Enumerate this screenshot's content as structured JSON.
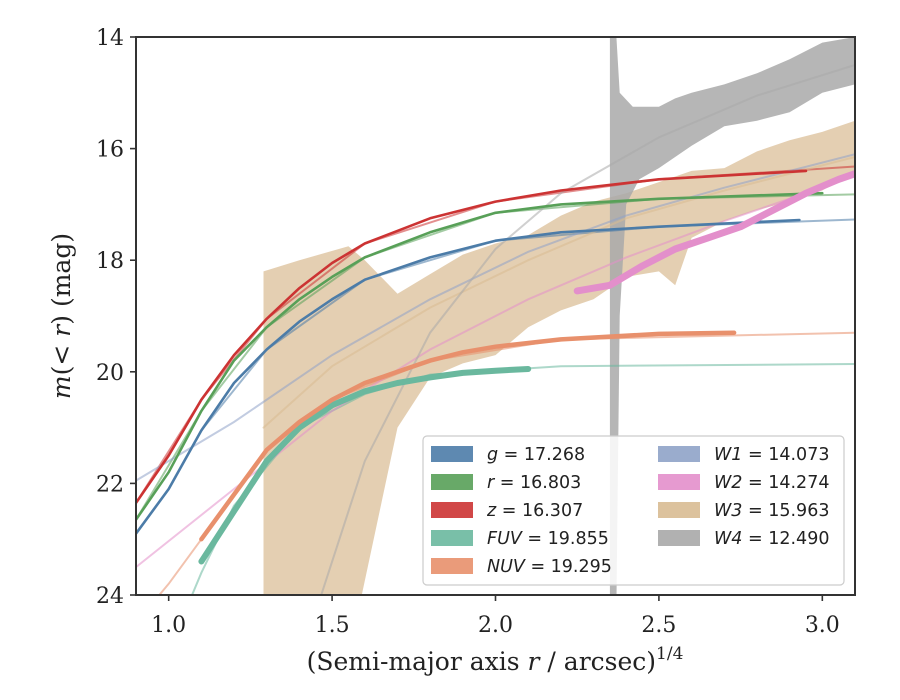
{
  "chart_data": {
    "type": "line",
    "xlabel": "(Semi-major axis r / arcsec)^{1/4}",
    "ylabel": "m(< r) (mag)",
    "xlim": [
      0.9,
      3.1
    ],
    "ylim": [
      24,
      14
    ],
    "y_inverted": true,
    "xticks": [
      "1.0",
      "1.5",
      "2.0",
      "2.5",
      "3.0"
    ],
    "xtick_values": [
      1.0,
      1.5,
      2.0,
      2.5,
      3.0
    ],
    "yticks": [
      "14",
      "16",
      "18",
      "20",
      "22",
      "24"
    ],
    "ytick_values": [
      14,
      16,
      18,
      20,
      22,
      24
    ],
    "grid": false,
    "legend_position": "lower-right",
    "series": [
      {
        "name": "g = 17.268",
        "band": "g",
        "value": "17.268",
        "color": "#4c7ca8",
        "data": [
          [
            0.9,
            22.9
          ],
          [
            1.0,
            22.1
          ],
          [
            1.1,
            21.05
          ],
          [
            1.2,
            20.2
          ],
          [
            1.3,
            19.6
          ],
          [
            1.4,
            19.1
          ],
          [
            1.5,
            18.7
          ],
          [
            1.6,
            18.35
          ],
          [
            1.8,
            17.95
          ],
          [
            2.0,
            17.65
          ],
          [
            2.2,
            17.5
          ],
          [
            2.5,
            17.4
          ],
          [
            2.93,
            17.28
          ]
        ],
        "model": [
          [
            0.9,
            22.9
          ],
          [
            1.0,
            22.1
          ],
          [
            1.1,
            21.05
          ],
          [
            1.3,
            19.6
          ],
          [
            1.6,
            18.35
          ],
          [
            2.0,
            17.65
          ],
          [
            2.5,
            17.4
          ],
          [
            3.1,
            17.27
          ]
        ]
      },
      {
        "name": "r = 16.803",
        "band": "r",
        "value": "16.803",
        "color": "#58a058",
        "data": [
          [
            0.9,
            22.65
          ],
          [
            1.0,
            21.8
          ],
          [
            1.1,
            20.7
          ],
          [
            1.2,
            19.8
          ],
          [
            1.3,
            19.2
          ],
          [
            1.4,
            18.7
          ],
          [
            1.5,
            18.3
          ],
          [
            1.6,
            17.95
          ],
          [
            1.8,
            17.5
          ],
          [
            2.0,
            17.15
          ],
          [
            2.2,
            17.0
          ],
          [
            2.5,
            16.9
          ],
          [
            3.0,
            16.8
          ]
        ],
        "model": [
          [
            0.9,
            22.65
          ],
          [
            1.1,
            20.7
          ],
          [
            1.3,
            19.2
          ],
          [
            1.6,
            17.95
          ],
          [
            2.0,
            17.15
          ],
          [
            2.5,
            16.9
          ],
          [
            3.1,
            16.82
          ]
        ]
      },
      {
        "name": "z = 16.307",
        "band": "z",
        "value": "16.307",
        "color": "#cc3333",
        "data": [
          [
            0.9,
            22.35
          ],
          [
            1.0,
            21.5
          ],
          [
            1.1,
            20.5
          ],
          [
            1.2,
            19.7
          ],
          [
            1.3,
            19.05
          ],
          [
            1.4,
            18.5
          ],
          [
            1.5,
            18.05
          ],
          [
            1.6,
            17.7
          ],
          [
            1.8,
            17.25
          ],
          [
            2.0,
            16.95
          ],
          [
            2.2,
            16.75
          ],
          [
            2.5,
            16.55
          ],
          [
            2.95,
            16.4
          ]
        ],
        "model": [
          [
            0.9,
            22.35
          ],
          [
            1.1,
            20.5
          ],
          [
            1.3,
            19.05
          ],
          [
            1.6,
            17.7
          ],
          [
            2.0,
            16.95
          ],
          [
            2.5,
            16.55
          ],
          [
            3.1,
            16.32
          ]
        ]
      },
      {
        "name": "FUV = 19.855",
        "band": "FUV",
        "value": "19.855",
        "color": "#6ab89e",
        "data": [
          [
            1.1,
            23.4
          ],
          [
            1.2,
            22.5
          ],
          [
            1.3,
            21.6
          ],
          [
            1.4,
            21.0
          ],
          [
            1.5,
            20.6
          ],
          [
            1.6,
            20.35
          ],
          [
            1.7,
            20.2
          ],
          [
            1.8,
            20.1
          ],
          [
            1.9,
            20.02
          ],
          [
            2.0,
            19.98
          ],
          [
            2.1,
            19.95
          ]
        ],
        "model": [
          [
            1.0,
            25.0
          ],
          [
            1.1,
            23.6
          ],
          [
            1.2,
            22.4
          ],
          [
            1.4,
            21.0
          ],
          [
            1.6,
            20.4
          ],
          [
            1.8,
            20.05
          ],
          [
            2.2,
            19.9
          ],
          [
            3.1,
            19.86
          ]
        ]
      },
      {
        "name": "NUV = 19.295",
        "band": "NUV",
        "value": "19.295",
        "color": "#e8906c",
        "data": [
          [
            1.1,
            23.0
          ],
          [
            1.2,
            22.2
          ],
          [
            1.3,
            21.4
          ],
          [
            1.4,
            20.9
          ],
          [
            1.5,
            20.5
          ],
          [
            1.6,
            20.2
          ],
          [
            1.7,
            20.0
          ],
          [
            1.8,
            19.8
          ],
          [
            1.9,
            19.65
          ],
          [
            2.0,
            19.55
          ],
          [
            2.2,
            19.42
          ],
          [
            2.5,
            19.32
          ],
          [
            2.73,
            19.3
          ]
        ],
        "model": [
          [
            0.9,
            24.5
          ],
          [
            1.0,
            23.8
          ],
          [
            1.1,
            23.0
          ],
          [
            1.3,
            21.4
          ],
          [
            1.5,
            20.5
          ],
          [
            1.8,
            19.8
          ],
          [
            2.2,
            19.42
          ],
          [
            3.1,
            19.3
          ]
        ]
      },
      {
        "name": "W1 = 14.073",
        "band": "W1",
        "value": "14.073",
        "color": "#8fa3c8",
        "data": [],
        "model": [
          [
            0.9,
            21.95
          ],
          [
            1.2,
            20.9
          ],
          [
            1.5,
            19.7
          ],
          [
            1.8,
            18.7
          ],
          [
            2.1,
            17.85
          ],
          [
            2.4,
            17.2
          ],
          [
            2.7,
            16.7
          ],
          [
            3.1,
            16.1
          ]
        ]
      },
      {
        "name": "W2 = 14.274",
        "band": "W2",
        "value": "14.274",
        "color": "#e38fcb",
        "data": [
          [
            2.25,
            18.55
          ],
          [
            2.35,
            18.45
          ],
          [
            2.45,
            18.1
          ],
          [
            2.55,
            17.8
          ],
          [
            2.65,
            17.6
          ],
          [
            2.75,
            17.4
          ],
          [
            2.85,
            17.1
          ],
          [
            2.95,
            16.8
          ],
          [
            3.05,
            16.55
          ],
          [
            3.1,
            16.45
          ]
        ],
        "model": [
          [
            0.9,
            23.5
          ],
          [
            1.2,
            22.1
          ],
          [
            1.5,
            20.7
          ],
          [
            1.8,
            19.6
          ],
          [
            2.1,
            18.7
          ],
          [
            2.4,
            17.95
          ],
          [
            2.7,
            17.3
          ],
          [
            3.1,
            16.5
          ]
        ]
      },
      {
        "name": "W3 = 15.963",
        "band": "W3",
        "value": "15.963",
        "color": "#d8bb92",
        "data": [
          [
            1.29,
            20.95
          ],
          [
            1.4,
            20.4
          ],
          [
            1.5,
            19.9
          ],
          [
            1.6,
            19.5
          ],
          [
            1.7,
            19.15
          ],
          [
            1.8,
            18.85
          ],
          [
            1.9,
            18.55
          ],
          [
            2.0,
            18.25
          ],
          [
            2.1,
            18.0
          ],
          [
            2.2,
            17.7
          ],
          [
            2.3,
            17.5
          ],
          [
            2.4,
            17.2
          ],
          [
            2.5,
            17.3
          ],
          [
            2.6,
            17.0
          ],
          [
            2.7,
            16.8
          ],
          [
            2.8,
            16.7
          ],
          [
            2.9,
            16.45
          ],
          [
            3.0,
            16.3
          ],
          [
            3.1,
            16.15
          ]
        ],
        "band_upper": [
          [
            1.29,
            18.2
          ],
          [
            1.4,
            18.0
          ],
          [
            1.55,
            17.75
          ],
          [
            1.6,
            18.0
          ],
          [
            1.7,
            18.6
          ],
          [
            1.8,
            18.25
          ],
          [
            1.9,
            17.9
          ],
          [
            2.0,
            17.7
          ],
          [
            2.1,
            17.55
          ],
          [
            2.2,
            17.2
          ],
          [
            2.3,
            16.95
          ],
          [
            2.4,
            16.8
          ],
          [
            2.5,
            16.6
          ],
          [
            2.6,
            16.4
          ],
          [
            2.7,
            16.35
          ],
          [
            2.8,
            16.05
          ],
          [
            2.9,
            15.85
          ],
          [
            3.0,
            15.7
          ],
          [
            3.1,
            15.5
          ]
        ],
        "band_lower": [
          [
            1.29,
            24.3
          ],
          [
            1.58,
            24.3
          ],
          [
            1.62,
            23.2
          ],
          [
            1.7,
            21.0
          ],
          [
            1.8,
            20.1
          ],
          [
            1.9,
            19.85
          ],
          [
            2.0,
            19.7
          ],
          [
            2.1,
            19.2
          ],
          [
            2.2,
            18.9
          ],
          [
            2.3,
            18.7
          ],
          [
            2.4,
            18.3
          ],
          [
            2.5,
            18.2
          ],
          [
            2.55,
            18.45
          ],
          [
            2.6,
            17.6
          ],
          [
            2.7,
            17.3
          ],
          [
            2.8,
            17.1
          ],
          [
            2.9,
            16.95
          ],
          [
            3.0,
            16.75
          ],
          [
            3.1,
            16.4
          ]
        ],
        "model": [
          [
            1.29,
            21.0
          ],
          [
            1.5,
            19.9
          ],
          [
            1.8,
            18.85
          ],
          [
            2.1,
            18.0
          ],
          [
            2.4,
            17.25
          ],
          [
            2.7,
            16.75
          ],
          [
            3.1,
            16.15
          ]
        ]
      },
      {
        "name": "W4 = 12.490",
        "band": "W4",
        "value": "12.490",
        "color": "#a9a9a9",
        "data": [
          [
            2.36,
            20.0
          ],
          [
            2.38,
            17.7
          ],
          [
            2.42,
            16.2
          ],
          [
            2.5,
            15.8
          ],
          [
            2.6,
            15.5
          ],
          [
            2.7,
            15.25
          ],
          [
            2.8,
            15.05
          ],
          [
            2.9,
            14.85
          ],
          [
            3.0,
            14.65
          ],
          [
            3.1,
            14.5
          ]
        ],
        "band_upper": [
          [
            2.35,
            14.0
          ],
          [
            2.37,
            14.0
          ],
          [
            2.38,
            15.0
          ],
          [
            2.42,
            15.25
          ],
          [
            2.5,
            15.25
          ],
          [
            2.55,
            15.1
          ],
          [
            2.6,
            15.0
          ],
          [
            2.7,
            14.85
          ],
          [
            2.8,
            14.65
          ],
          [
            2.9,
            14.4
          ],
          [
            3.0,
            14.1
          ],
          [
            3.1,
            14.0
          ]
        ],
        "band_lower": [
          [
            2.35,
            24.2
          ],
          [
            2.37,
            24.2
          ],
          [
            2.38,
            19.0
          ],
          [
            2.4,
            17.0
          ],
          [
            2.44,
            16.55
          ],
          [
            2.5,
            16.35
          ],
          [
            2.6,
            15.95
          ],
          [
            2.7,
            15.6
          ],
          [
            2.8,
            15.5
          ],
          [
            2.9,
            15.35
          ],
          [
            3.0,
            15.0
          ],
          [
            3.1,
            14.85
          ]
        ],
        "model": [
          [
            1.45,
            24.3
          ],
          [
            1.6,
            21.6
          ],
          [
            1.8,
            19.3
          ],
          [
            2.0,
            17.8
          ],
          [
            2.2,
            16.8
          ],
          [
            2.5,
            15.8
          ],
          [
            2.8,
            15.05
          ],
          [
            3.1,
            14.5
          ]
        ]
      }
    ]
  }
}
